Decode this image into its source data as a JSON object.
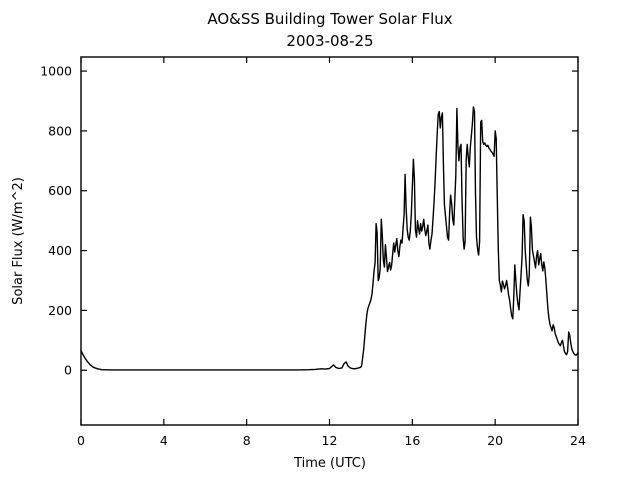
{
  "chart_data": {
    "type": "line",
    "title": "AO&SS Building Tower Solar Flux",
    "subtitle": "2003-08-25",
    "xlabel": "Time (UTC)",
    "ylabel": "Solar Flux (W/m^2)",
    "xlim": [
      0,
      24
    ],
    "ylim": [
      -183,
      1047
    ],
    "x_ticks": [
      0,
      4,
      8,
      12,
      16,
      20,
      24
    ],
    "y_ticks": [
      0,
      200,
      400,
      600,
      800,
      1000
    ],
    "grid": false,
    "legend": "none",
    "line_color": "#000000",
    "background": "#ffffff",
    "points": [
      [
        0,
        65
      ],
      [
        0.1,
        52
      ],
      [
        0.2,
        40
      ],
      [
        0.3,
        30
      ],
      [
        0.45,
        18
      ],
      [
        0.6,
        10
      ],
      [
        0.8,
        5
      ],
      [
        1.0,
        2
      ],
      [
        1.5,
        1
      ],
      [
        2,
        1
      ],
      [
        3,
        1
      ],
      [
        4,
        1
      ],
      [
        5,
        1
      ],
      [
        6,
        1
      ],
      [
        7,
        1
      ],
      [
        8,
        1
      ],
      [
        9,
        1
      ],
      [
        10,
        1
      ],
      [
        10.5,
        1
      ],
      [
        11,
        2
      ],
      [
        11.3,
        3
      ],
      [
        11.6,
        5
      ],
      [
        11.8,
        4
      ],
      [
        12.0,
        6
      ],
      [
        12.1,
        12
      ],
      [
        12.2,
        18
      ],
      [
        12.3,
        10
      ],
      [
        12.45,
        6
      ],
      [
        12.6,
        8
      ],
      [
        12.7,
        22
      ],
      [
        12.8,
        28
      ],
      [
        12.9,
        14
      ],
      [
        13.0,
        8
      ],
      [
        13.1,
        6
      ],
      [
        13.2,
        5
      ],
      [
        13.3,
        6
      ],
      [
        13.4,
        8
      ],
      [
        13.5,
        10
      ],
      [
        13.55,
        15
      ],
      [
        13.6,
        40
      ],
      [
        13.65,
        70
      ],
      [
        13.7,
        110
      ],
      [
        13.75,
        150
      ],
      [
        13.8,
        185
      ],
      [
        13.85,
        205
      ],
      [
        13.9,
        215
      ],
      [
        13.95,
        225
      ],
      [
        14.0,
        235
      ],
      [
        14.05,
        255
      ],
      [
        14.1,
        290
      ],
      [
        14.15,
        330
      ],
      [
        14.2,
        360
      ],
      [
        14.25,
        490
      ],
      [
        14.3,
        460
      ],
      [
        14.35,
        300
      ],
      [
        14.4,
        310
      ],
      [
        14.45,
        340
      ],
      [
        14.5,
        505
      ],
      [
        14.55,
        450
      ],
      [
        14.6,
        370
      ],
      [
        14.65,
        345
      ],
      [
        14.7,
        420
      ],
      [
        14.75,
        380
      ],
      [
        14.8,
        330
      ],
      [
        14.85,
        345
      ],
      [
        14.9,
        360
      ],
      [
        14.95,
        335
      ],
      [
        15.0,
        350
      ],
      [
        15.05,
        390
      ],
      [
        15.1,
        425
      ],
      [
        15.15,
        395
      ],
      [
        15.2,
        420
      ],
      [
        15.25,
        440
      ],
      [
        15.3,
        400
      ],
      [
        15.35,
        380
      ],
      [
        15.4,
        415
      ],
      [
        15.45,
        435
      ],
      [
        15.5,
        425
      ],
      [
        15.55,
        470
      ],
      [
        15.6,
        520
      ],
      [
        15.65,
        655
      ],
      [
        15.7,
        545
      ],
      [
        15.75,
        470
      ],
      [
        15.8,
        445
      ],
      [
        15.85,
        435
      ],
      [
        15.9,
        465
      ],
      [
        15.95,
        520
      ],
      [
        16.0,
        610
      ],
      [
        16.05,
        705
      ],
      [
        16.1,
        640
      ],
      [
        16.15,
        470
      ],
      [
        16.2,
        445
      ],
      [
        16.25,
        500
      ],
      [
        16.3,
        475
      ],
      [
        16.35,
        455
      ],
      [
        16.4,
        490
      ],
      [
        16.45,
        465
      ],
      [
        16.5,
        480
      ],
      [
        16.55,
        505
      ],
      [
        16.6,
        470
      ],
      [
        16.65,
        450
      ],
      [
        16.7,
        465
      ],
      [
        16.75,
        485
      ],
      [
        16.8,
        425
      ],
      [
        16.85,
        405
      ],
      [
        16.9,
        435
      ],
      [
        16.95,
        455
      ],
      [
        17.0,
        505
      ],
      [
        17.05,
        565
      ],
      [
        17.1,
        630
      ],
      [
        17.15,
        710
      ],
      [
        17.2,
        790
      ],
      [
        17.25,
        855
      ],
      [
        17.3,
        865
      ],
      [
        17.35,
        810
      ],
      [
        17.4,
        845
      ],
      [
        17.45,
        860
      ],
      [
        17.5,
        690
      ],
      [
        17.55,
        555
      ],
      [
        17.6,
        515
      ],
      [
        17.65,
        480
      ],
      [
        17.7,
        445
      ],
      [
        17.75,
        435
      ],
      [
        17.8,
        525
      ],
      [
        17.85,
        585
      ],
      [
        17.9,
        555
      ],
      [
        17.95,
        505
      ],
      [
        18.0,
        485
      ],
      [
        18.05,
        570
      ],
      [
        18.1,
        650
      ],
      [
        18.15,
        875
      ],
      [
        18.2,
        750
      ],
      [
        18.25,
        700
      ],
      [
        18.3,
        745
      ],
      [
        18.35,
        755
      ],
      [
        18.4,
        575
      ],
      [
        18.45,
        445
      ],
      [
        18.5,
        405
      ],
      [
        18.55,
        430
      ],
      [
        18.6,
        705
      ],
      [
        18.65,
        755
      ],
      [
        18.7,
        715
      ],
      [
        18.75,
        680
      ],
      [
        18.8,
        745
      ],
      [
        18.85,
        785
      ],
      [
        18.9,
        825
      ],
      [
        18.95,
        880
      ],
      [
        19.0,
        865
      ],
      [
        19.05,
        590
      ],
      [
        19.1,
        445
      ],
      [
        19.15,
        405
      ],
      [
        19.2,
        385
      ],
      [
        19.25,
        430
      ],
      [
        19.3,
        830
      ],
      [
        19.35,
        835
      ],
      [
        19.4,
        765
      ],
      [
        19.45,
        755
      ],
      [
        19.5,
        760
      ],
      [
        19.55,
        752
      ],
      [
        19.6,
        748
      ],
      [
        19.65,
        752
      ],
      [
        19.7,
        742
      ],
      [
        19.75,
        738
      ],
      [
        19.8,
        732
      ],
      [
        19.85,
        728
      ],
      [
        19.9,
        722
      ],
      [
        19.95,
        715
      ],
      [
        20.0,
        800
      ],
      [
        20.05,
        775
      ],
      [
        20.1,
        590
      ],
      [
        20.15,
        405
      ],
      [
        20.2,
        300
      ],
      [
        20.25,
        285
      ],
      [
        20.3,
        262
      ],
      [
        20.35,
        298
      ],
      [
        20.4,
        288
      ],
      [
        20.45,
        272
      ],
      [
        20.5,
        282
      ],
      [
        20.55,
        300
      ],
      [
        20.6,
        278
      ],
      [
        20.65,
        252
      ],
      [
        20.7,
        232
      ],
      [
        20.75,
        205
      ],
      [
        20.8,
        182
      ],
      [
        20.85,
        172
      ],
      [
        20.9,
        248
      ],
      [
        20.95,
        352
      ],
      [
        21.0,
        298
      ],
      [
        21.05,
        252
      ],
      [
        21.1,
        222
      ],
      [
        21.15,
        202
      ],
      [
        21.2,
        262
      ],
      [
        21.25,
        322
      ],
      [
        21.3,
        382
      ],
      [
        21.35,
        520
      ],
      [
        21.4,
        498
      ],
      [
        21.45,
        402
      ],
      [
        21.5,
        352
      ],
      [
        21.55,
        302
      ],
      [
        21.6,
        282
      ],
      [
        21.65,
        322
      ],
      [
        21.7,
        512
      ],
      [
        21.75,
        478
      ],
      [
        21.8,
        402
      ],
      [
        21.85,
        382
      ],
      [
        21.9,
        362
      ],
      [
        21.95,
        342
      ],
      [
        22.0,
        382
      ],
      [
        22.05,
        400
      ],
      [
        22.1,
        352
      ],
      [
        22.15,
        372
      ],
      [
        22.2,
        390
      ],
      [
        22.25,
        352
      ],
      [
        22.3,
        332
      ],
      [
        22.35,
        362
      ],
      [
        22.4,
        340
      ],
      [
        22.45,
        300
      ],
      [
        22.5,
        252
      ],
      [
        22.55,
        202
      ],
      [
        22.6,
        172
      ],
      [
        22.65,
        152
      ],
      [
        22.7,
        142
      ],
      [
        22.75,
        132
      ],
      [
        22.8,
        152
      ],
      [
        22.85,
        142
      ],
      [
        22.9,
        122
      ],
      [
        22.95,
        112
      ],
      [
        23.0,
        102
      ],
      [
        23.05,
        92
      ],
      [
        23.1,
        86
      ],
      [
        23.15,
        82
      ],
      [
        23.2,
        92
      ],
      [
        23.25,
        100
      ],
      [
        23.3,
        80
      ],
      [
        23.35,
        62
      ],
      [
        23.4,
        56
      ],
      [
        23.45,
        52
      ],
      [
        23.5,
        62
      ],
      [
        23.55,
        128
      ],
      [
        23.6,
        118
      ],
      [
        23.65,
        90
      ],
      [
        23.7,
        72
      ],
      [
        23.75,
        62
      ],
      [
        23.8,
        56
      ],
      [
        23.85,
        52
      ],
      [
        23.9,
        50
      ],
      [
        23.95,
        54
      ],
      [
        24.0,
        58
      ]
    ]
  }
}
